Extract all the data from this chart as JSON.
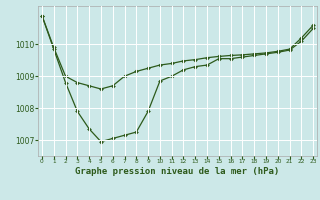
{
  "background_color": "#cce8e8",
  "grid_color": "#ffffff",
  "line_color": "#2d5a1b",
  "xlabel": "Graphe pression niveau de la mer (hPa)",
  "xlabel_fontsize": 6.5,
  "yticks": [
    1007,
    1008,
    1009,
    1010
  ],
  "xticks": [
    0,
    1,
    2,
    3,
    4,
    5,
    6,
    7,
    8,
    9,
    10,
    11,
    12,
    13,
    14,
    15,
    16,
    17,
    18,
    19,
    20,
    21,
    22,
    23
  ],
  "xlim": [
    -0.3,
    23.3
  ],
  "ylim": [
    1006.5,
    1011.2
  ],
  "line1_x": [
    0,
    1,
    2,
    3,
    4,
    5,
    6,
    7,
    8,
    9,
    10,
    11,
    12,
    13,
    14,
    15,
    16,
    17,
    18,
    19,
    20,
    21,
    22,
    23
  ],
  "line1_y": [
    1010.9,
    1009.85,
    1008.8,
    1007.9,
    1007.35,
    1006.95,
    1007.05,
    1007.15,
    1007.25,
    1007.9,
    1008.85,
    1009.0,
    1009.2,
    1009.3,
    1009.35,
    1009.55,
    1009.55,
    1009.6,
    1009.65,
    1009.7,
    1009.75,
    1009.82,
    1010.1,
    1010.5
  ],
  "line2_x": [
    0,
    1,
    2,
    3,
    4,
    5,
    6,
    7,
    8,
    9,
    10,
    11,
    12,
    13,
    14,
    15,
    16,
    17,
    18,
    19,
    20,
    21,
    22,
    23
  ],
  "line2_y": [
    1010.9,
    1009.9,
    1009.0,
    1008.8,
    1008.7,
    1008.6,
    1008.7,
    1009.0,
    1009.15,
    1009.25,
    1009.35,
    1009.4,
    1009.48,
    1009.52,
    1009.58,
    1009.62,
    1009.65,
    1009.67,
    1009.7,
    1009.73,
    1009.78,
    1009.85,
    1010.2,
    1010.6
  ]
}
